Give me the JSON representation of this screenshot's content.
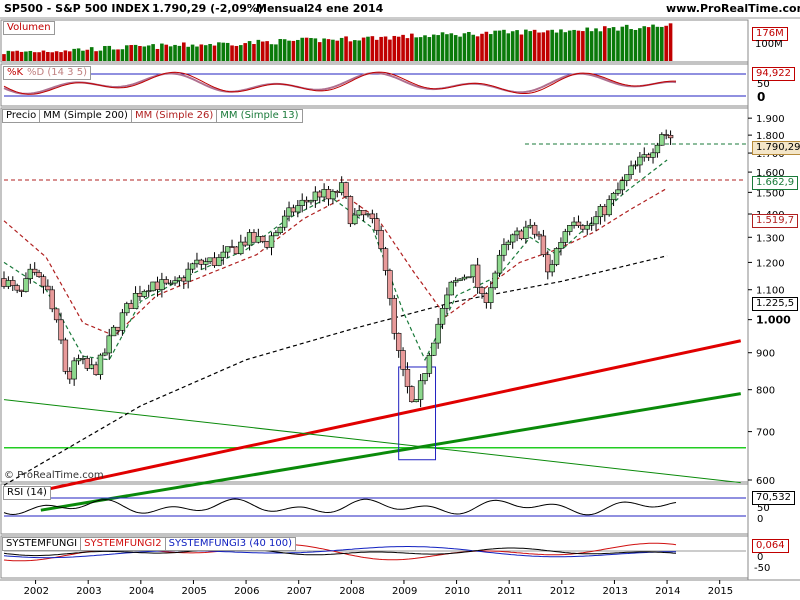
{
  "header": {
    "symbol": "SP500 - S&P 500 INDEX",
    "price_change": "1.790,29 (-2,09%)",
    "period": "Mensual",
    "date": "24 ene 2014",
    "site": "www.ProRealTime.com"
  },
  "watermark": "© ProRealTime.com",
  "colors": {
    "up": "#8dd88d",
    "down": "#e89a9a",
    "sma200": "#000000",
    "sma26": "#b02020",
    "sma13": "#1a7a3a",
    "red_trend": "#e00000",
    "green_trend": "#0a8a0a"
  },
  "volume": {
    "label": "Volumen",
    "ticks": [
      "176M",
      "100M"
    ]
  },
  "stoch": {
    "k_label": "%K",
    "d_label": "%D (14 3 5)",
    "value": "94,922",
    "ticks": [
      "50",
      "0"
    ]
  },
  "price": {
    "legend": [
      {
        "label": "Precio",
        "color": "#000000"
      },
      {
        "label": "MM (Simple 200)",
        "color": "#000000"
      },
      {
        "label": "MM (Simple 26)",
        "color": "#b02020"
      },
      {
        "label": "MM (Simple 13)",
        "color": "#1a7a3a"
      }
    ],
    "y_ticks": [
      "1.900",
      "1.800",
      "1.700",
      "1.600",
      "1.500",
      "1.400",
      "1.300",
      "1.200",
      "1.100",
      "1.000",
      "900",
      "800",
      "700",
      "600"
    ],
    "labels": {
      "last": "1.790,29",
      "sma13": "1.662,9",
      "sma26": "1.519,7",
      "sma200": "1.225,5"
    }
  },
  "rsi": {
    "label": "RSI (14)",
    "value": "70,532",
    "ticks": [
      "50",
      "0"
    ]
  },
  "system": {
    "labels": [
      {
        "text": "SYSTEMFUNGI",
        "color": "#000000"
      },
      {
        "text": "SYSTEMFUNGI2",
        "color": "#d01010"
      },
      {
        "text": "SYSTEMFUNGI3 (40 100)",
        "color": "#1020c0"
      }
    ],
    "value": "0,064",
    "ticks": [
      "0",
      "-50"
    ]
  },
  "x_axis": [
    "2002",
    "2003",
    "2004",
    "2005",
    "2006",
    "2007",
    "2008",
    "2009",
    "2010",
    "2011",
    "2012",
    "2013",
    "2014",
    "2015"
  ],
  "chart_data": {
    "type": "line",
    "title": "SP500 - S&P 500 INDEX",
    "period": "Mensual",
    "x_range": [
      2001.4,
      2015.5
    ],
    "ylim": [
      600,
      1950
    ],
    "y_scale": "log",
    "anchors": [
      {
        "x": 2001.4,
        "y": 1140
      },
      {
        "x": 2001.7,
        "y": 1070
      },
      {
        "x": 2001.9,
        "y": 1150
      },
      {
        "x": 2002.2,
        "y": 1110
      },
      {
        "x": 2002.5,
        "y": 920
      },
      {
        "x": 2002.6,
        "y": 820
      },
      {
        "x": 2002.8,
        "y": 880
      },
      {
        "x": 2003.0,
        "y": 850
      },
      {
        "x": 2003.2,
        "y": 860
      },
      {
        "x": 2003.5,
        "y": 970
      },
      {
        "x": 2003.9,
        "y": 1080
      },
      {
        "x": 2004.2,
        "y": 1130
      },
      {
        "x": 2004.6,
        "y": 1100
      },
      {
        "x": 2005.0,
        "y": 1190
      },
      {
        "x": 2005.5,
        "y": 1210
      },
      {
        "x": 2006.0,
        "y": 1290
      },
      {
        "x": 2006.4,
        "y": 1280
      },
      {
        "x": 2006.9,
        "y": 1420
      },
      {
        "x": 2007.4,
        "y": 1500
      },
      {
        "x": 2007.6,
        "y": 1460
      },
      {
        "x": 2007.8,
        "y": 1530
      },
      {
        "x": 2008.0,
        "y": 1380
      },
      {
        "x": 2008.3,
        "y": 1390
      },
      {
        "x": 2008.6,
        "y": 1270
      },
      {
        "x": 2008.8,
        "y": 960
      },
      {
        "x": 2009.0,
        "y": 830
      },
      {
        "x": 2009.2,
        "y": 740
      },
      {
        "x": 2009.5,
        "y": 920
      },
      {
        "x": 2009.9,
        "y": 1110
      },
      {
        "x": 2010.3,
        "y": 1180
      },
      {
        "x": 2010.5,
        "y": 1050
      },
      {
        "x": 2010.9,
        "y": 1250
      },
      {
        "x": 2011.3,
        "y": 1340
      },
      {
        "x": 2011.6,
        "y": 1300
      },
      {
        "x": 2011.7,
        "y": 1140
      },
      {
        "x": 2011.9,
        "y": 1250
      },
      {
        "x": 2012.2,
        "y": 1400
      },
      {
        "x": 2012.5,
        "y": 1340
      },
      {
        "x": 2012.8,
        "y": 1420
      },
      {
        "x": 2013.0,
        "y": 1480
      },
      {
        "x": 2013.3,
        "y": 1600
      },
      {
        "x": 2013.6,
        "y": 1680
      },
      {
        "x": 2013.9,
        "y": 1820
      },
      {
        "x": 2014.07,
        "y": 1790
      }
    ],
    "sma200": [
      {
        "x": 2001.4,
        "y": 590
      },
      {
        "x": 2004.0,
        "y": 760
      },
      {
        "x": 2006.0,
        "y": 880
      },
      {
        "x": 2008.0,
        "y": 970
      },
      {
        "x": 2010.0,
        "y": 1060
      },
      {
        "x": 2012.0,
        "y": 1130
      },
      {
        "x": 2014.0,
        "y": 1225.5
      }
    ],
    "sma26": [
      {
        "x": 2001.4,
        "y": 1370
      },
      {
        "x": 2002.2,
        "y": 1220
      },
      {
        "x": 2002.9,
        "y": 990
      },
      {
        "x": 2003.5,
        "y": 950
      },
      {
        "x": 2004.3,
        "y": 1080
      },
      {
        "x": 2005.2,
        "y": 1150
      },
      {
        "x": 2006.2,
        "y": 1230
      },
      {
        "x": 2007.1,
        "y": 1380
      },
      {
        "x": 2007.9,
        "y": 1480
      },
      {
        "x": 2008.5,
        "y": 1380
      },
      {
        "x": 2009.2,
        "y": 1160
      },
      {
        "x": 2009.8,
        "y": 1010
      },
      {
        "x": 2010.5,
        "y": 1100
      },
      {
        "x": 2011.2,
        "y": 1200
      },
      {
        "x": 2011.9,
        "y": 1250
      },
      {
        "x": 2012.6,
        "y": 1320
      },
      {
        "x": 2013.3,
        "y": 1420
      },
      {
        "x": 2014.0,
        "y": 1519.7
      }
    ],
    "sma13": [
      {
        "x": 2001.4,
        "y": 1200
      },
      {
        "x": 2002.2,
        "y": 1100
      },
      {
        "x": 2002.9,
        "y": 890
      },
      {
        "x": 2003.4,
        "y": 880
      },
      {
        "x": 2004.0,
        "y": 1060
      },
      {
        "x": 2005.0,
        "y": 1160
      },
      {
        "x": 2006.0,
        "y": 1250
      },
      {
        "x": 2006.8,
        "y": 1380
      },
      {
        "x": 2007.6,
        "y": 1480
      },
      {
        "x": 2008.4,
        "y": 1340
      },
      {
        "x": 2009.0,
        "y": 1020
      },
      {
        "x": 2009.4,
        "y": 880
      },
      {
        "x": 2010.0,
        "y": 1080
      },
      {
        "x": 2010.8,
        "y": 1150
      },
      {
        "x": 2011.4,
        "y": 1300
      },
      {
        "x": 2011.9,
        "y": 1230
      },
      {
        "x": 2012.6,
        "y": 1370
      },
      {
        "x": 2013.2,
        "y": 1500
      },
      {
        "x": 2014.0,
        "y": 1662.9
      }
    ],
    "annotations": [
      {
        "type": "hline_dashed",
        "y": 1560,
        "color": "#b02020"
      },
      {
        "type": "hline_dashed",
        "y": 1750,
        "x_from": 2011.3,
        "color": "#1a7a3a"
      },
      {
        "type": "hline",
        "y": 665,
        "color": "#22cc22"
      },
      {
        "type": "trendline",
        "color": "#e00000",
        "from": {
          "x": 2002.1,
          "y": 580
        },
        "to": {
          "x": 2015.4,
          "y": 935
        }
      },
      {
        "type": "trendline",
        "color": "#0a8a0a",
        "from": {
          "x": 2002.1,
          "y": 545
        },
        "to": {
          "x": 2015.4,
          "y": 790
        }
      },
      {
        "type": "trendline",
        "color": "#0a8a0a",
        "from": {
          "x": 2001.4,
          "y": 775
        },
        "to": {
          "x": 2015.4,
          "y": 595
        }
      },
      {
        "type": "box",
        "x0": 2008.9,
        "x1": 2009.6,
        "y0": 640,
        "y1": 860,
        "color": "#2020c0"
      }
    ]
  }
}
